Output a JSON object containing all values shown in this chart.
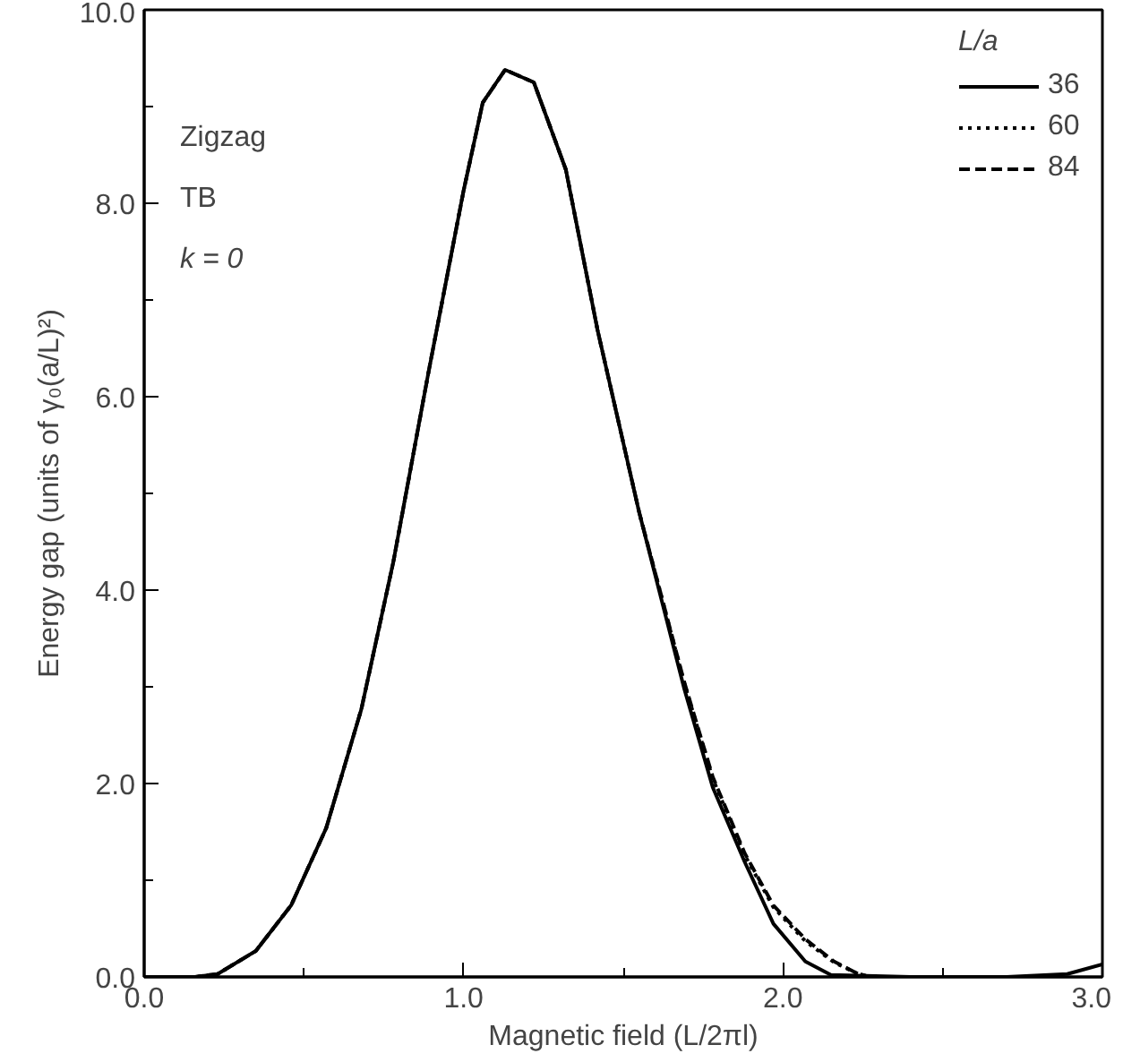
{
  "chart_data": {
    "type": "line",
    "xlabel": "Magnetic field (L/2πl)",
    "ylabel": "Energy gap (units of γ₀(a/L)²)",
    "legend_title": "L/a",
    "xlim": [
      0.0,
      3.0
    ],
    "ylim": [
      0.0,
      10.0
    ],
    "xticks": [
      {
        "value": 0,
        "label": "0.0"
      },
      {
        "value": 1,
        "label": "1.0"
      },
      {
        "value": 2,
        "label": "2.0"
      },
      {
        "value": 3,
        "label": "3.0"
      }
    ],
    "yticks": [
      {
        "value": 0,
        "label": "0.0"
      },
      {
        "value": 2,
        "label": "2.0"
      },
      {
        "value": 4,
        "label": "4.0"
      },
      {
        "value": 6,
        "label": "6.0"
      },
      {
        "value": 8,
        "label": "8.0"
      },
      {
        "value": 10,
        "label": "10.0"
      }
    ],
    "grid": false,
    "legend": "top right",
    "marker": "none",
    "annotations": [
      "Zigzag",
      "TB",
      "k = 0"
    ],
    "series": [
      {
        "name": "36",
        "color": "#000000",
        "line_style": "solid",
        "x": [
          0.0,
          0.16,
          0.23,
          0.35,
          0.46,
          0.57,
          0.68,
          0.78,
          0.89,
          1.0,
          1.06,
          1.13,
          1.22,
          1.32,
          1.42,
          1.55,
          1.69,
          1.78,
          1.88,
          1.97,
          2.07,
          2.15,
          2.4,
          2.7,
          2.89,
          3.0
        ],
        "values": [
          0.0,
          0.0,
          0.03,
          0.27,
          0.74,
          1.54,
          2.77,
          4.29,
          6.25,
          8.13,
          9.04,
          9.38,
          9.25,
          8.35,
          6.68,
          4.8,
          2.99,
          1.96,
          1.19,
          0.55,
          0.16,
          0.02,
          0.0,
          0.0,
          0.03,
          0.13
        ]
      },
      {
        "name": "60",
        "color": "#000000",
        "line_style": "dotted",
        "x": [
          0.0,
          0.16,
          0.23,
          0.35,
          0.46,
          0.57,
          0.68,
          0.78,
          0.89,
          1.0,
          1.06,
          1.13,
          1.22,
          1.32,
          1.42,
          1.55,
          1.69,
          1.78,
          1.88,
          1.97,
          2.07,
          2.16,
          2.23,
          2.27,
          2.5
        ],
        "values": [
          0.0,
          0.0,
          0.03,
          0.27,
          0.74,
          1.54,
          2.77,
          4.29,
          6.25,
          8.13,
          9.04,
          9.38,
          9.25,
          8.35,
          6.68,
          4.8,
          3.05,
          2.05,
          1.26,
          0.72,
          0.37,
          0.15,
          0.04,
          0.0,
          0.0
        ]
      },
      {
        "name": "84",
        "color": "#000000",
        "line_style": "dashed",
        "x": [
          0.0,
          0.16,
          0.23,
          0.35,
          0.46,
          0.57,
          0.68,
          0.78,
          0.89,
          1.0,
          1.06,
          1.13,
          1.22,
          1.32,
          1.42,
          1.55,
          1.69,
          1.78,
          1.88,
          1.97,
          2.07,
          2.16,
          2.23,
          2.27,
          2.5
        ],
        "values": [
          0.0,
          0.0,
          0.03,
          0.27,
          0.74,
          1.54,
          2.77,
          4.29,
          6.25,
          8.13,
          9.04,
          9.38,
          9.25,
          8.35,
          6.68,
          4.8,
          3.06,
          2.07,
          1.28,
          0.74,
          0.39,
          0.16,
          0.04,
          0.0,
          0.0
        ]
      }
    ]
  }
}
